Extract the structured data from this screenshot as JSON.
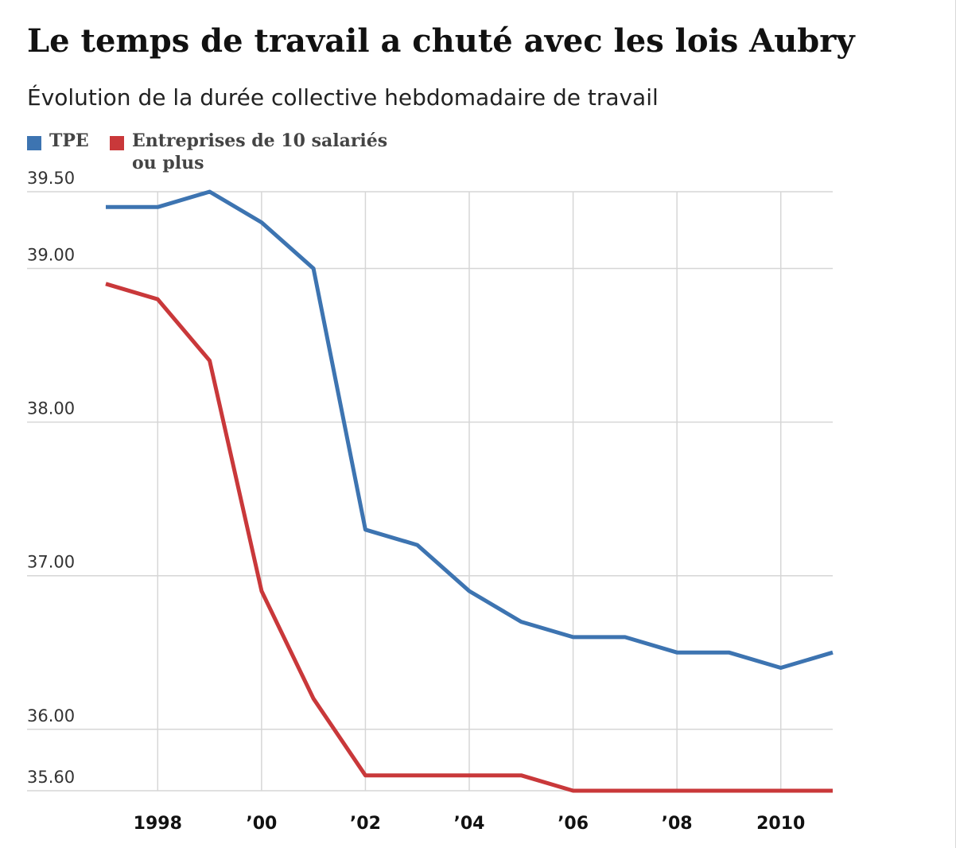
{
  "colors": {
    "tpe": "#3d74b1",
    "large": "#c9383a",
    "grid": "#d6d6d6",
    "axis_text": "#111111",
    "tick_text": "#333333"
  },
  "chart_data": {
    "type": "line",
    "title": "Le temps de travail a chuté avec les lois Aubry",
    "subtitle": "Évolution de la durée collective hebdomadaire de travail",
    "x": [
      1997,
      1998,
      1999,
      2000,
      2001,
      2002,
      2003,
      2004,
      2005,
      2006,
      2007,
      2008,
      2009,
      2010,
      2011
    ],
    "xticks": [
      {
        "value": 1998,
        "label": "1998"
      },
      {
        "value": 2000,
        "label": "’00"
      },
      {
        "value": 2002,
        "label": "’02"
      },
      {
        "value": 2004,
        "label": "’04"
      },
      {
        "value": 2006,
        "label": "’06"
      },
      {
        "value": 2008,
        "label": "’08"
      },
      {
        "value": 2010,
        "label": "2010"
      }
    ],
    "yticks": [
      {
        "value": 39.5,
        "label": "39.50"
      },
      {
        "value": 39.0,
        "label": "39.00"
      },
      {
        "value": 38.0,
        "label": "38.00"
      },
      {
        "value": 37.0,
        "label": "37.00"
      },
      {
        "value": 36.0,
        "label": "36.00"
      },
      {
        "value": 35.6,
        "label": "35.60"
      }
    ],
    "xlim": [
      1997,
      2011
    ],
    "ylim": [
      35.6,
      39.5
    ],
    "grid": true,
    "legend_position": "top-left",
    "series": [
      {
        "name": "TPE",
        "color_key": "tpe",
        "values": [
          39.4,
          39.4,
          39.5,
          39.3,
          39.0,
          37.3,
          37.2,
          36.9,
          36.7,
          36.6,
          36.6,
          36.5,
          36.5,
          36.4,
          36.5
        ]
      },
      {
        "name": "Entreprises de 10 salariés ou plus",
        "legend_lines": [
          "Entreprises de 10 salariés",
          "ou plus"
        ],
        "color_key": "large",
        "values": [
          38.9,
          38.8,
          38.4,
          36.9,
          36.2,
          35.7,
          35.7,
          35.7,
          35.7,
          35.6,
          35.6,
          35.6,
          35.6,
          35.6,
          35.6
        ]
      }
    ]
  }
}
